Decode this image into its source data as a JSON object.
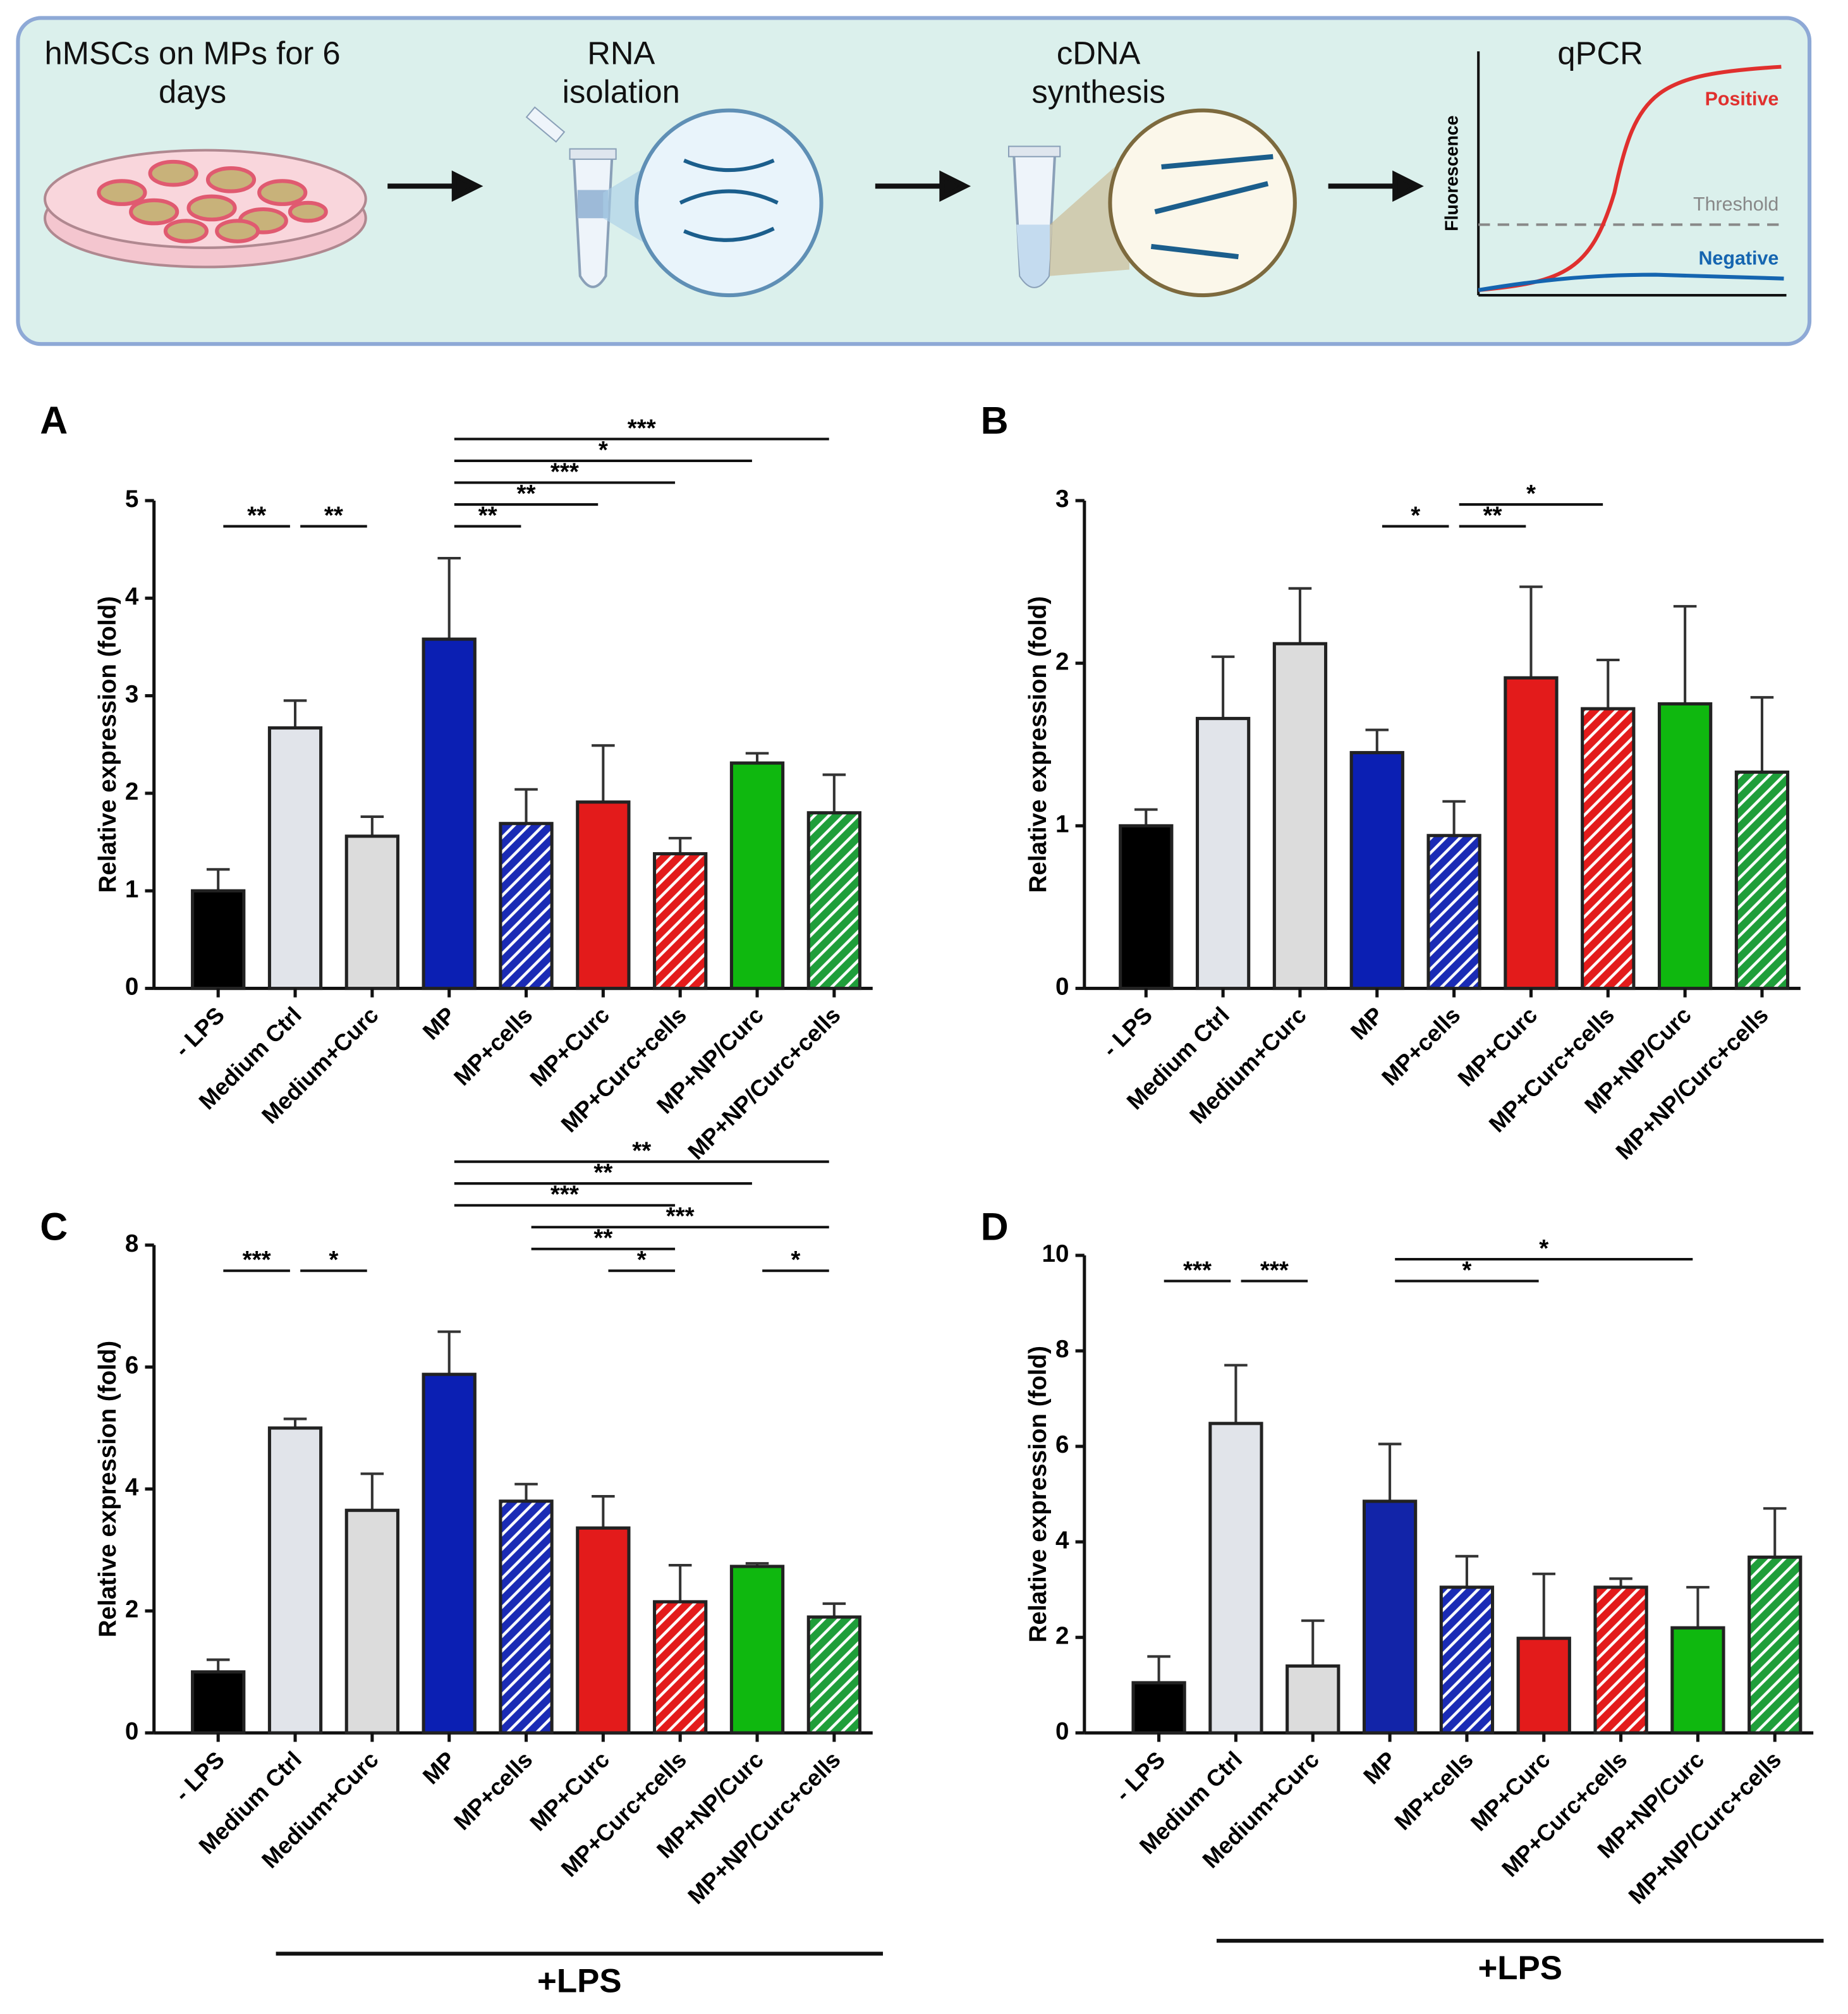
{
  "workflow": {
    "steps": [
      [
        "hMSCs on MPs for 6",
        "days"
      ],
      [
        "RNA",
        "isolation"
      ],
      [
        "cDNA",
        "synthesis"
      ],
      [
        "qPCR"
      ]
    ],
    "y_label": "Fluorescence",
    "positive": "Positive",
    "threshold": "Threshold",
    "negative": "Negative"
  },
  "chart_data": [
    {
      "type": "bar",
      "panel": "A",
      "y_label": "Relative expression (fold)",
      "categories": [
        "- LPS",
        "Medium Ctrl",
        "Medium+Curc",
        "MP",
        "MP+cells",
        "MP+Curc",
        "MP+Curc+cells",
        "MP+NP/Curc",
        "MP+NP/Curc+cells"
      ],
      "values": [
        1.0,
        2.67,
        1.56,
        3.58,
        1.69,
        1.91,
        1.38,
        2.31,
        1.8
      ],
      "errors": [
        0.22,
        0.28,
        0.2,
        0.83,
        0.35,
        0.58,
        0.16,
        0.1,
        0.39
      ],
      "colors": [
        "#000000",
        "#e1e4ea",
        "#dcdcdc",
        "#0b1fb3",
        "#1a2bb5",
        "#e31b1b",
        "#e31b1b",
        "#0fb80f",
        "#1f9e3a"
      ],
      "hatched": [
        false,
        false,
        false,
        false,
        true,
        false,
        true,
        false,
        true
      ],
      "ylim": [
        0,
        5
      ],
      "yticks": [
        0,
        1,
        2,
        3,
        4,
        5
      ],
      "significance": [
        {
          "from": "- LPS",
          "to": "Medium Ctrl",
          "label": "**"
        },
        {
          "from": "Medium Ctrl",
          "to": "Medium+Curc",
          "label": "**"
        },
        {
          "from": "MP",
          "to": "MP+cells",
          "label": "**"
        },
        {
          "from": "MP",
          "to": "MP+Curc",
          "label": "**"
        },
        {
          "from": "MP",
          "to": "MP+Curc+cells",
          "label": "***"
        },
        {
          "from": "MP",
          "to": "MP+NP/Curc",
          "label": "*"
        },
        {
          "from": "MP",
          "to": "MP+NP/Curc+cells",
          "label": "***"
        }
      ]
    },
    {
      "type": "bar",
      "panel": "B",
      "y_label": "Relative expression (fold)",
      "categories": [
        "- LPS",
        "Medium Ctrl",
        "Medium+Curc",
        "MP",
        "MP+cells",
        "MP+Curc",
        "MP+Curc+cells",
        "MP+NP/Curc",
        "MP+NP/Curc+cells"
      ],
      "values": [
        1.0,
        1.66,
        2.12,
        1.45,
        0.94,
        1.91,
        1.72,
        1.75,
        1.33
      ],
      "errors": [
        0.1,
        0.38,
        0.34,
        0.14,
        0.21,
        0.56,
        0.3,
        0.6,
        0.46
      ],
      "colors": [
        "#000000",
        "#e1e4ea",
        "#dcdcdc",
        "#0b1fb3",
        "#1a2bb5",
        "#e31b1b",
        "#e31b1b",
        "#0fb80f",
        "#1f9e3a"
      ],
      "hatched": [
        false,
        false,
        false,
        false,
        true,
        false,
        true,
        false,
        true
      ],
      "ylim": [
        0,
        3
      ],
      "yticks": [
        0,
        1,
        2,
        3
      ],
      "significance": [
        {
          "from": "MP",
          "to": "MP+cells",
          "label": "*"
        },
        {
          "from": "MP+cells",
          "to": "MP+Curc",
          "label": "**"
        },
        {
          "from": "MP+cells",
          "to": "MP+Curc+cells",
          "label": "*"
        }
      ]
    },
    {
      "type": "bar",
      "panel": "C",
      "y_label": "Relative expression (fold)",
      "group_label": "+LPS",
      "categories": [
        "- LPS",
        "Medium Ctrl",
        "Medium+Curc",
        "MP",
        "MP+cells",
        "MP+Curc",
        "MP+Curc+cells",
        "MP+NP/Curc",
        "MP+NP/Curc+cells"
      ],
      "values": [
        1.0,
        5.0,
        3.65,
        5.88,
        3.8,
        3.36,
        2.15,
        2.73,
        1.9
      ],
      "errors": [
        0.2,
        0.15,
        0.6,
        0.7,
        0.28,
        0.52,
        0.6,
        0.05,
        0.22
      ],
      "colors": [
        "#000000",
        "#e1e4ea",
        "#dcdcdc",
        "#0b1fb3",
        "#1a2bb5",
        "#e31b1b",
        "#e31b1b",
        "#0fb80f",
        "#1f9e3a"
      ],
      "hatched": [
        false,
        false,
        false,
        false,
        true,
        false,
        true,
        false,
        true
      ],
      "ylim": [
        0,
        8
      ],
      "yticks": [
        0,
        2,
        4,
        6,
        8
      ],
      "significance": [
        {
          "from": "MP+Curc",
          "to": "MP+Curc+cells",
          "label": "*"
        },
        {
          "from": "MP+NP/Curc",
          "to": "MP+NP/Curc+cells",
          "label": "*"
        },
        {
          "from": "MP+cells",
          "to": "MP+Curc+cells",
          "label": "**"
        },
        {
          "from": "MP+cells",
          "to": "MP+NP/Curc+cells",
          "label": "***"
        },
        {
          "from": "MP",
          "to": "MP+Curc+cells",
          "label": "***"
        },
        {
          "from": "MP",
          "to": "MP+NP/Curc",
          "label": "**"
        },
        {
          "from": "MP",
          "to": "MP+NP/Curc+cells",
          "label": "**"
        },
        {
          "from": "- LPS",
          "to": "Medium Ctrl",
          "label": "***"
        },
        {
          "from": "Medium Ctrl",
          "to": "Medium+Curc",
          "label": "*"
        }
      ]
    },
    {
      "type": "bar",
      "panel": "D",
      "y_label": "Relative expression (fold)",
      "group_label": "+LPS",
      "categories": [
        "- LPS",
        "Medium Ctrl",
        "Medium+Curc",
        "MP",
        "MP+cells",
        "MP+Curc",
        "MP+Curc+cells",
        "MP+NP/Curc",
        "MP+NP/Curc+cells"
      ],
      "values": [
        1.05,
        6.48,
        1.4,
        4.85,
        3.05,
        1.98,
        3.05,
        2.2,
        3.68
      ],
      "errors": [
        0.55,
        1.22,
        0.95,
        1.2,
        0.65,
        1.35,
        0.18,
        0.85,
        1.02
      ],
      "colors": [
        "#000000",
        "#e1e4ea",
        "#dcdcdc",
        "#1224a8",
        "#1a2bb5",
        "#e31b1b",
        "#e31b1b",
        "#0fb80f",
        "#1f9e3a"
      ],
      "hatched": [
        false,
        false,
        false,
        false,
        true,
        false,
        true,
        false,
        true
      ],
      "ylim": [
        0,
        10
      ],
      "yticks": [
        0,
        2,
        4,
        6,
        8,
        10
      ],
      "significance": [
        {
          "from": "- LPS",
          "to": "Medium Ctrl",
          "label": "***"
        },
        {
          "from": "Medium Ctrl",
          "to": "Medium+Curc",
          "label": "***"
        },
        {
          "from": "MP",
          "to": "MP+Curc",
          "label": "*"
        },
        {
          "from": "MP",
          "to": "MP+NP/Curc",
          "label": "*"
        }
      ]
    }
  ]
}
